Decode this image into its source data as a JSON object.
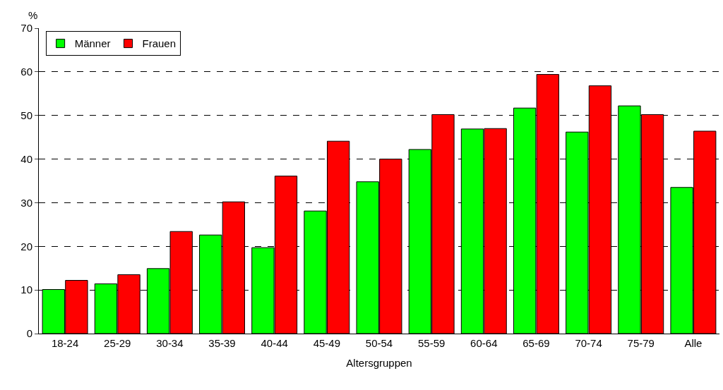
{
  "chart_data": {
    "type": "bar",
    "xlabel": "Altersgruppen",
    "ylabel": "%",
    "categories": [
      "18-24",
      "25-29",
      "30-34",
      "35-39",
      "40-44",
      "45-49",
      "50-54",
      "55-59",
      "60-64",
      "65-69",
      "70-74",
      "75-79",
      "Alle"
    ],
    "series": [
      {
        "name": "Männer",
        "color": "#00ff00",
        "values": [
          10.1,
          11.4,
          14.9,
          22.6,
          19.7,
          28.1,
          34.8,
          42.2,
          46.9,
          51.7,
          46.2,
          52.2,
          33.5
        ]
      },
      {
        "name": "Frauen",
        "color": "#ff0000",
        "values": [
          12.2,
          13.5,
          23.4,
          30.2,
          36.1,
          44.1,
          40.0,
          50.2,
          47.0,
          59.4,
          56.8,
          50.2,
          46.4
        ]
      }
    ],
    "ylim": [
      0,
      70
    ],
    "yticks": [
      0,
      10,
      20,
      30,
      40,
      50,
      60,
      70
    ],
    "grid": "y",
    "legend": "top left"
  }
}
